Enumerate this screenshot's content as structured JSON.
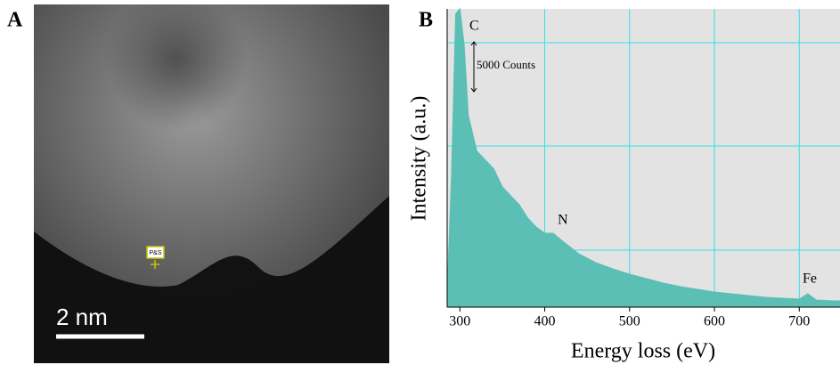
{
  "image_panel": {
    "label": "A",
    "scale_bar": "2 nm",
    "marker": "P&S"
  },
  "chart_data": {
    "type": "area",
    "panel_label": "B",
    "x_label": "Energy loss (eV)",
    "y_label": "Intensity (a.u.)",
    "annotations": [
      "C",
      "N",
      "Fe",
      "5000 Counts"
    ],
    "color": "#5bbfb5",
    "x": [
      285,
      290,
      295,
      300,
      305,
      310,
      320,
      330,
      340,
      350,
      360,
      370,
      380,
      390,
      400,
      410,
      420,
      440,
      460,
      480,
      500,
      520,
      540,
      560,
      580,
      600,
      620,
      640,
      660,
      680,
      700,
      710,
      720,
      740,
      748
    ],
    "values": [
      1340,
      13000,
      29500,
      30000,
      26400,
      19250,
      15700,
      14800,
      13900,
      12100,
      11200,
      10300,
      8950,
      8060,
      7430,
      7430,
      6720,
      5370,
      4480,
      3850,
      3310,
      2870,
      2420,
      2060,
      1790,
      1520,
      1340,
      1160,
      985,
      900,
      806,
      1340,
      716,
      627,
      627
    ],
    "xlim": [
      285,
      748
    ],
    "ylim": [
      0,
      30000
    ],
    "xticks": [
      300,
      400,
      500,
      600,
      700
    ],
    "grid": true
  }
}
